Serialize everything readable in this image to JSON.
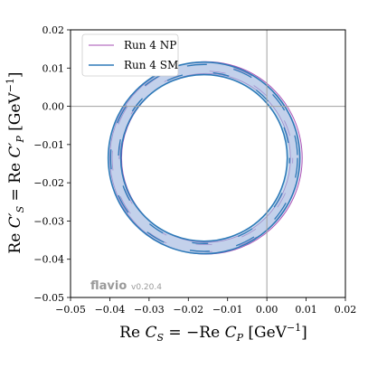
{
  "chart_data": {
    "type": "contour",
    "xlabel": "Re C_S = −Re C_P [GeV⁻¹]",
    "ylabel": "Re C′_S = Re C′_P [GeV⁻¹]",
    "xlim": [
      -0.05,
      0.02
    ],
    "ylim": [
      -0.05,
      0.02
    ],
    "x_ticks": [
      "−0.05",
      "−0.04",
      "−0.03",
      "−0.02",
      "−0.01",
      "0.00",
      "0.01",
      "0.02"
    ],
    "y_ticks": [
      "−0.05",
      "−0.04",
      "−0.03",
      "−0.02",
      "−0.01",
      "0.00",
      "0.01",
      "0.02"
    ],
    "x_tick_values": [
      -0.05,
      -0.04,
      -0.03,
      -0.02,
      -0.01,
      0.0,
      0.01,
      0.02
    ],
    "y_tick_values": [
      -0.05,
      -0.04,
      -0.03,
      -0.02,
      -0.01,
      0.0,
      0.01,
      0.02
    ],
    "grid": false,
    "reference_lines": {
      "x": 0.0,
      "y": 0.0,
      "color": "#a0a0a0"
    },
    "legend_position": "top-left",
    "series": [
      {
        "name": "Run 4 NP",
        "color": "#a64db3",
        "fill": "#e2c8ea",
        "center": [
          -0.0155,
          -0.0135
        ],
        "inner_radius": 0.0215,
        "outer_radius": 0.0245,
        "inner_radius_narrow": 0.0221,
        "outer_radius_narrow": 0.0239
      },
      {
        "name": "Run 4 SM",
        "color": "#2e7ab8",
        "fill": "#9ec5e4",
        "center": [
          -0.016,
          -0.0135
        ],
        "inner_radius": 0.0212,
        "outer_radius": 0.0244,
        "inner_radius_narrow": 0.0218,
        "outer_radius_narrow": 0.0238
      }
    ]
  },
  "watermark": {
    "name": "flavio",
    "version": "v0.20.4"
  }
}
